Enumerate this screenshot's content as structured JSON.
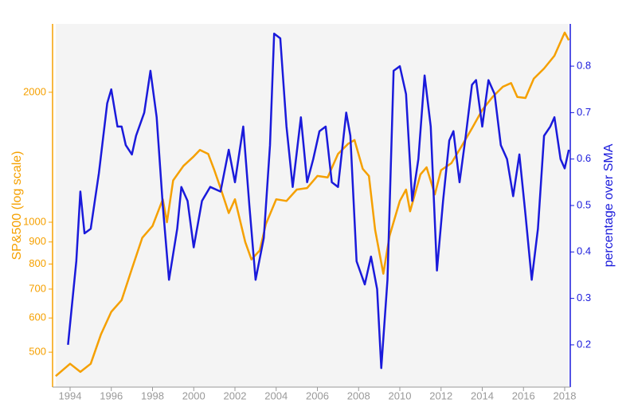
{
  "chart_data": {
    "type": "line",
    "ylabel": "SP&500 (log scale)",
    "y2label": "percentage over SMA",
    "xlim": [
      1993.15,
      2018.27
    ],
    "xticks": [
      1994,
      1996,
      1998,
      2000,
      2002,
      2004,
      2006,
      2008,
      2010,
      2012,
      2014,
      2016,
      2018
    ],
    "ylim": [
      415,
      2880
    ],
    "ylog": true,
    "yticks": [
      500,
      600,
      700,
      800,
      900,
      1000,
      2000
    ],
    "y2lim": [
      0.109,
      0.891
    ],
    "y2ticks": [
      0.2,
      0.3,
      0.4,
      0.5,
      0.6,
      0.7,
      0.8
    ],
    "series": [
      {
        "name": "SP500",
        "color": "#f5a000",
        "axis": "y",
        "x": [
          1993.3,
          1994.0,
          1994.5,
          1995.0,
          1995.5,
          1996.0,
          1996.5,
          1997.0,
          1997.5,
          1998.0,
          1998.5,
          1998.7,
          1999.0,
          1999.5,
          2000.0,
          2000.3,
          2000.7,
          2001.0,
          2001.3,
          2001.7,
          2002.0,
          2002.5,
          2002.8,
          2003.2,
          2003.5,
          2004.0,
          2004.5,
          2005.0,
          2005.5,
          2006.0,
          2006.5,
          2007.0,
          2007.5,
          2007.8,
          2008.2,
          2008.5,
          2008.8,
          2009.2,
          2009.5,
          2010.0,
          2010.3,
          2010.5,
          2011.0,
          2011.3,
          2011.7,
          2012.0,
          2012.5,
          2013.0,
          2013.5,
          2014.0,
          2014.5,
          2015.0,
          2015.4,
          2015.7,
          2016.1,
          2016.5,
          2017.0,
          2017.5,
          2018.0,
          2018.2
        ],
        "values": [
          440,
          470,
          450,
          470,
          550,
          620,
          660,
          780,
          920,
          980,
          1130,
          1000,
          1250,
          1350,
          1420,
          1470,
          1440,
          1320,
          1200,
          1050,
          1130,
          900,
          820,
          860,
          990,
          1130,
          1120,
          1190,
          1200,
          1280,
          1270,
          1440,
          1520,
          1550,
          1330,
          1280,
          960,
          760,
          930,
          1120,
          1190,
          1060,
          1290,
          1340,
          1160,
          1320,
          1370,
          1500,
          1650,
          1820,
          1950,
          2060,
          2100,
          1950,
          1940,
          2150,
          2270,
          2430,
          2750,
          2640
        ]
      },
      {
        "name": "percentage over SMA",
        "color": "#1a1adb",
        "axis": "y2",
        "x": [
          1993.9,
          1994.3,
          1994.5,
          1994.7,
          1995.0,
          1995.4,
          1995.8,
          1996.0,
          1996.3,
          1996.5,
          1996.7,
          1997.0,
          1997.2,
          1997.6,
          1997.9,
          1998.2,
          1998.5,
          1998.8,
          1999.2,
          1999.4,
          1999.7,
          2000.0,
          2000.4,
          2000.8,
          2001.3,
          2001.7,
          2002.0,
          2002.4,
          2002.7,
          2003.0,
          2003.4,
          2003.7,
          2003.9,
          2004.2,
          2004.5,
          2004.8,
          2005.2,
          2005.5,
          2005.8,
          2006.1,
          2006.4,
          2006.7,
          2007.0,
          2007.4,
          2007.6,
          2007.9,
          2008.3,
          2008.6,
          2008.9,
          2009.1,
          2009.4,
          2009.7,
          2010.0,
          2010.3,
          2010.6,
          2010.9,
          2011.2,
          2011.5,
          2011.8,
          2012.1,
          2012.4,
          2012.6,
          2012.9,
          2013.2,
          2013.5,
          2013.7,
          2014.0,
          2014.3,
          2014.6,
          2014.9,
          2015.2,
          2015.5,
          2015.8,
          2016.1,
          2016.4,
          2016.7,
          2017.0,
          2017.3,
          2017.5,
          2017.8,
          2018.0,
          2018.2
        ],
        "values": [
          0.2,
          0.38,
          0.53,
          0.44,
          0.45,
          0.57,
          0.72,
          0.75,
          0.67,
          0.67,
          0.63,
          0.61,
          0.65,
          0.7,
          0.79,
          0.69,
          0.5,
          0.34,
          0.45,
          0.54,
          0.51,
          0.41,
          0.51,
          0.54,
          0.53,
          0.62,
          0.55,
          0.67,
          0.5,
          0.34,
          0.43,
          0.63,
          0.87,
          0.86,
          0.67,
          0.54,
          0.69,
          0.55,
          0.6,
          0.66,
          0.67,
          0.55,
          0.54,
          0.7,
          0.65,
          0.38,
          0.33,
          0.39,
          0.32,
          0.15,
          0.34,
          0.79,
          0.8,
          0.74,
          0.51,
          0.6,
          0.78,
          0.67,
          0.36,
          0.51,
          0.64,
          0.66,
          0.55,
          0.65,
          0.76,
          0.77,
          0.67,
          0.77,
          0.74,
          0.63,
          0.6,
          0.52,
          0.61,
          0.48,
          0.34,
          0.45,
          0.65,
          0.67,
          0.69,
          0.6,
          0.58,
          0.62
        ]
      }
    ]
  }
}
